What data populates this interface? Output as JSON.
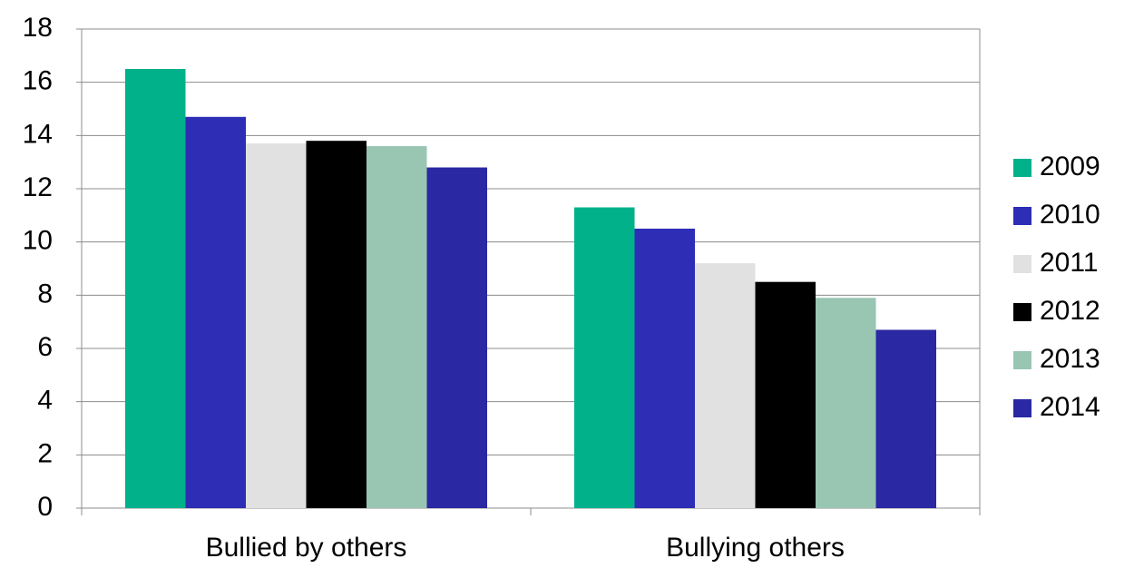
{
  "chart_data": {
    "type": "bar",
    "categories": [
      "Bullied by others",
      "Bullying others"
    ],
    "series": [
      {
        "name": "2009",
        "color": "#00b18a",
        "values": [
          16.5,
          11.3
        ]
      },
      {
        "name": "2010",
        "color": "#2e2db5",
        "values": [
          14.7,
          10.5
        ]
      },
      {
        "name": "2011",
        "color": "#e1e1e1",
        "values": [
          13.7,
          9.2
        ]
      },
      {
        "name": "2012",
        "color": "#000000",
        "values": [
          13.8,
          8.5
        ]
      },
      {
        "name": "2013",
        "color": "#98c6b2",
        "values": [
          13.6,
          7.9
        ]
      },
      {
        "name": "2014",
        "color": "#2a28a2",
        "values": [
          12.8,
          6.7
        ]
      }
    ],
    "ylim": [
      0,
      18
    ],
    "yticks": [
      0,
      2,
      4,
      6,
      8,
      10,
      12,
      14,
      16,
      18
    ],
    "grid": true,
    "legend": "right"
  }
}
